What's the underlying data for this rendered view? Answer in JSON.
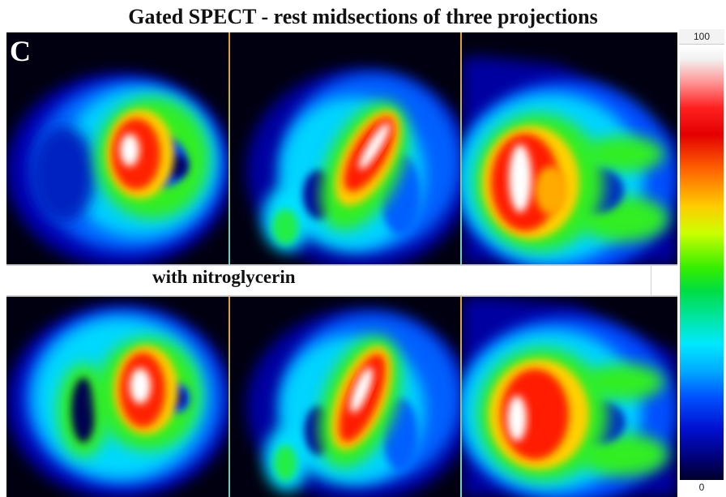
{
  "title": "Gated SPECT - rest midsections of three projections",
  "panel_letter": "C",
  "mid_label": "with nitroglycerin",
  "color_scale": {
    "max_label": "100",
    "min_label": "0"
  }
}
